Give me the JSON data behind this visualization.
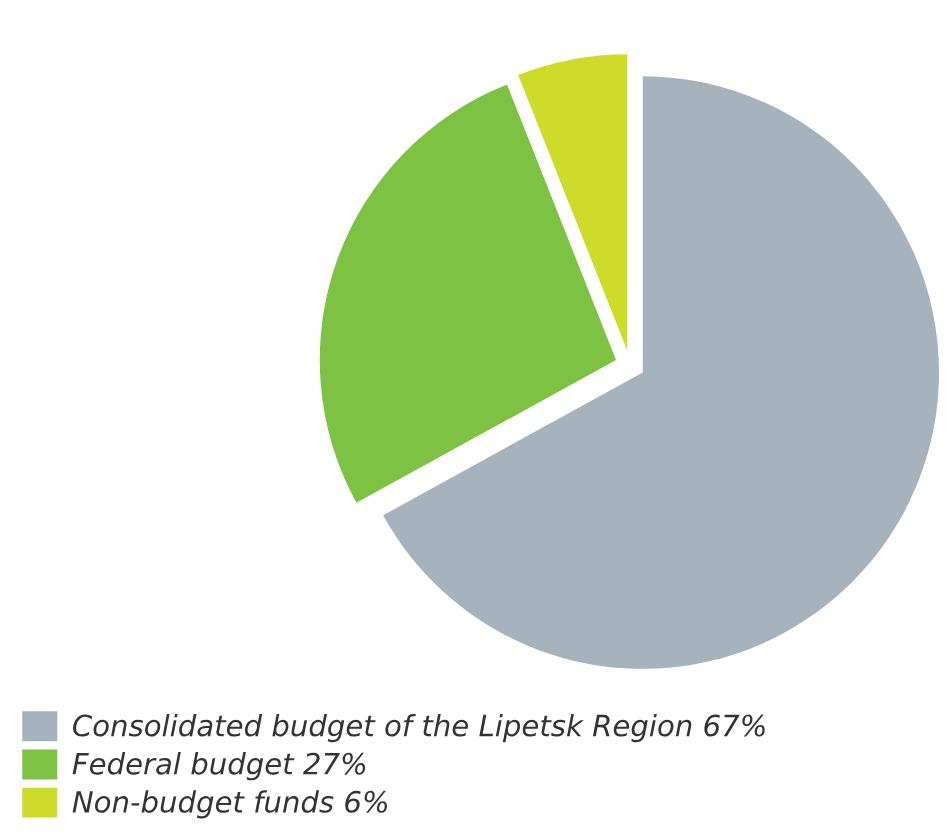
{
  "chart_data": {
    "type": "pie",
    "categories": [
      "Consolidated budget of the Lipetsk Region 67%",
      "Federal budget 27%",
      "Non-budget funds 6%"
    ],
    "values": [
      67,
      27,
      6
    ],
    "colors": [
      "#a7b3bc",
      "#7dc242",
      "#cddc2a"
    ],
    "legend": "bottom left"
  }
}
